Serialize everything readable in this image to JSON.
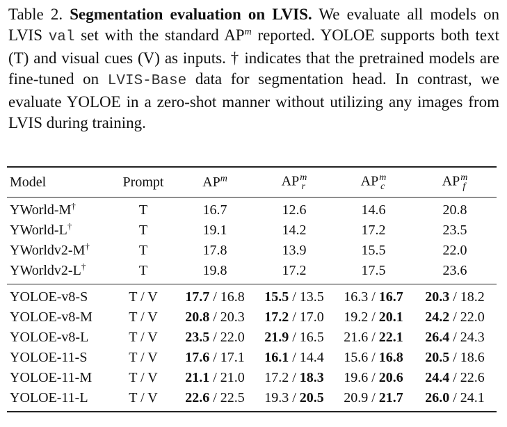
{
  "caption": {
    "parts": [
      "Table 2.",
      "Segmentation evaluation on LVIS.",
      "We evaluate all models on LVIS",
      "val",
      "set with the standard AP",
      "m",
      "reported. YOLOE supports both text (T) and visual cues (V) as inputs. † indicates that the pretrained models are fine-tuned on",
      "LVIS-Base",
      "data for segmentation head. In contrast, we evaluate YOLOE in a zero-shot manner without utilizing any images from LVIS during training."
    ]
  },
  "table": {
    "header": [
      {
        "text": "Model"
      },
      {
        "text": "Prompt"
      },
      {
        "text": "AP",
        "sup": "m"
      },
      {
        "text": "AP",
        "sup": "m",
        "sub": "r"
      },
      {
        "text": "AP",
        "sup": "m",
        "sub": "c"
      },
      {
        "text": "AP",
        "sup": "m",
        "sub": "f"
      }
    ],
    "separator": "/",
    "baseline_rows": [
      {
        "model": "YWorld-M",
        "mark": "†",
        "prompt": "T",
        "values": [
          "16.7",
          "12.6",
          "14.6",
          "20.8"
        ]
      },
      {
        "model": "YWorld-L",
        "mark": "†",
        "prompt": "T",
        "values": [
          "19.1",
          "14.2",
          "17.2",
          "23.5"
        ]
      },
      {
        "model": "YWorldv2-M",
        "mark": "†",
        "prompt": "T",
        "values": [
          "17.8",
          "13.9",
          "15.5",
          "22.0"
        ]
      },
      {
        "model": "YWorldv2-L",
        "mark": "†",
        "prompt": "T",
        "values": [
          "19.8",
          "17.2",
          "17.5",
          "23.6"
        ]
      }
    ],
    "yoloe_rows": [
      {
        "model": "YOLOE-v8-S",
        "prompt": "T / V",
        "values": [
          [
            "17.7",
            "16.8"
          ],
          [
            "15.5",
            "13.5"
          ],
          [
            "16.3",
            "16.7"
          ],
          [
            "20.3",
            "18.2"
          ]
        ]
      },
      {
        "model": "YOLOE-v8-M",
        "prompt": "T / V",
        "values": [
          [
            "20.8",
            "20.3"
          ],
          [
            "17.2",
            "17.0"
          ],
          [
            "19.2",
            "20.1"
          ],
          [
            "24.2",
            "22.0"
          ]
        ]
      },
      {
        "model": "YOLOE-v8-L",
        "prompt": "T / V",
        "values": [
          [
            "23.5",
            "22.0"
          ],
          [
            "21.9",
            "16.5"
          ],
          [
            "21.6",
            "22.1"
          ],
          [
            "26.4",
            "24.3"
          ]
        ]
      },
      {
        "model": "YOLOE-11-S",
        "prompt": "T / V",
        "values": [
          [
            "17.6",
            "17.1"
          ],
          [
            "16.1",
            "14.4"
          ],
          [
            "15.6",
            "16.8"
          ],
          [
            "20.5",
            "18.6"
          ]
        ]
      },
      {
        "model": "YOLOE-11-M",
        "prompt": "T / V",
        "values": [
          [
            "21.1",
            "21.0"
          ],
          [
            "17.2",
            "18.3"
          ],
          [
            "19.6",
            "20.6"
          ],
          [
            "24.4",
            "22.6"
          ]
        ]
      },
      {
        "model": "YOLOE-11-L",
        "prompt": "T / V",
        "values": [
          [
            "22.6",
            "22.5"
          ],
          [
            "19.3",
            "20.5"
          ],
          [
            "20.9",
            "21.7"
          ],
          [
            "26.0",
            "24.1"
          ]
        ]
      }
    ]
  }
}
